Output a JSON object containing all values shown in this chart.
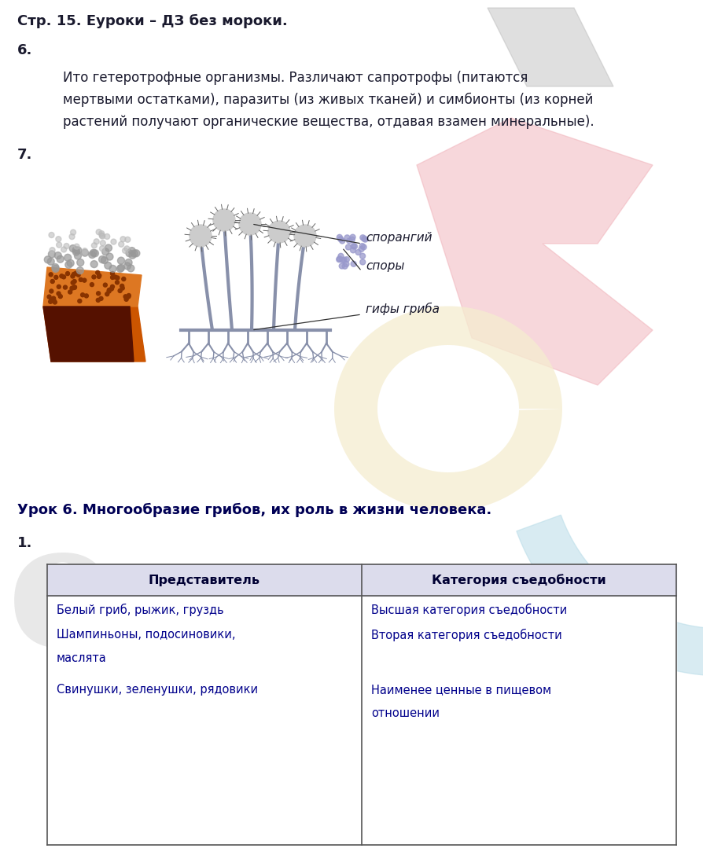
{
  "bg_color": "#ffffff",
  "title_line": "Стр. 15. Еуроки – ДЗ без мороки.",
  "section6_label": "6.",
  "section6_text_lines": [
    "Ито гетеротрофные организмы. Различают сапротрофы (питаются",
    "мертвыми остатками), паразиты (из живых тканей) и симбионты (из корней",
    "растений получают органические вещества, отдавая взамен минеральные)."
  ],
  "section7_label": "7.",
  "label_sporangiy": "спорангий",
  "label_spory": "споры",
  "label_giphy": "гифы гриба",
  "lesson_title": "Урок 6. Многообразие грибов, их роль в жизни человека.",
  "task1_label": "1.",
  "table_header": [
    "Представитель",
    "Категория съедобности"
  ],
  "left_col": [
    "Белый гриб, рыжик, груздь",
    "Шампиньоны, подосиновики,",
    "маслята",
    "Свинушки, зеленушки, рядовики"
  ],
  "right_col": [
    "Высшая категория съедобности",
    "Вторая категория съедобности",
    "",
    "Наименее ценные в пищевом",
    "отношении"
  ],
  "text_color": "#1a1a2e",
  "table_text_color": "#00008b",
  "header_bg": "#dcdcec",
  "title_fontsize": 13,
  "body_fontsize": 12,
  "label_fontsize": 13
}
